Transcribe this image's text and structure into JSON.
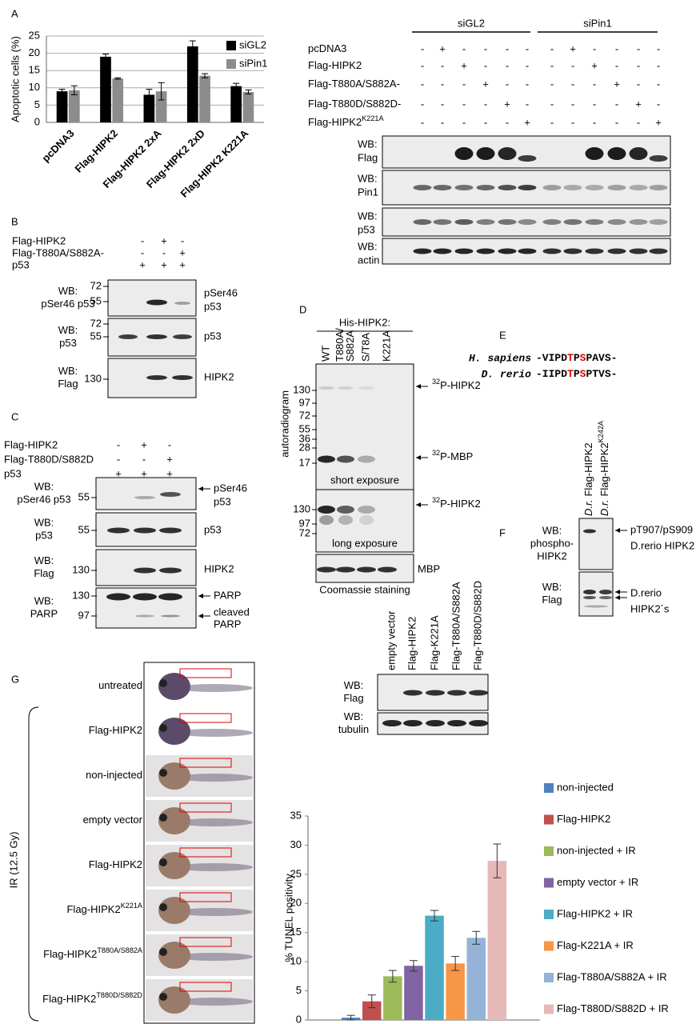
{
  "panel_labels": [
    "A",
    "B",
    "C",
    "D",
    "E",
    "F",
    "G"
  ],
  "chart_data": [
    {
      "type": "bar",
      "y_label": "Apoptotic cells (%)",
      "categories": [
        "pcDNA3",
        "Flag-HIPK2",
        "Flag-HIPK2 2xA",
        "Flag-HIPK2 2xD",
        "Flag-HIPK2 K221A"
      ],
      "series": [
        {
          "name": "siGL2",
          "color": "#000000",
          "values": [
            9,
            19,
            8,
            22,
            10.5
          ],
          "errors": [
            0.6,
            0.8,
            1.6,
            1.6,
            0.8
          ]
        },
        {
          "name": "siPin1",
          "color": "#8c8c8c",
          "values": [
            9.3,
            12.7,
            9,
            13.5,
            8.8
          ],
          "errors": [
            1.3,
            0.2,
            2.5,
            0.6,
            0.6
          ]
        }
      ],
      "ylim": [
        0,
        25
      ],
      "yticks": [
        0,
        5,
        10,
        15,
        20,
        25
      ],
      "grid": true,
      "legend": "top-right"
    },
    {
      "type": "bar",
      "y_label": "% TUNEL positivity",
      "categories": [
        null
      ],
      "series": [
        {
          "name": "non-injected",
          "color": "#4f81bd",
          "values": [
            0.4
          ],
          "errors": [
            0.4
          ]
        },
        {
          "name": "Flag-HIPK2",
          "color": "#c0504d",
          "values": [
            3.2
          ],
          "errors": [
            1.1
          ]
        },
        {
          "name": "non-injected + IR",
          "color": "#9bbb59",
          "values": [
            7.5
          ],
          "errors": [
            1.0
          ]
        },
        {
          "name": "empty vector + IR",
          "color": "#8064a2",
          "values": [
            9.3
          ],
          "errors": [
            0.9
          ]
        },
        {
          "name": "Flag-HIPK2 + IR",
          "color": "#4bacc6",
          "values": [
            17.9
          ],
          "errors": [
            0.9
          ]
        },
        {
          "name": "Flag-K221A + IR",
          "color": "#f79646",
          "values": [
            9.7
          ],
          "errors": [
            1.2
          ]
        },
        {
          "name": "Flag-T880A/S882A + IR",
          "color": "#95b3d7",
          "values": [
            14.1
          ],
          "errors": [
            1.1
          ]
        },
        {
          "name": "Flag-T880D/S882D + IR",
          "color": "#e6b9b8",
          "values": [
            27.3
          ],
          "errors": [
            2.9
          ]
        }
      ],
      "ylim": [
        0,
        35
      ],
      "yticks": [
        0,
        5,
        10,
        15,
        20,
        25,
        30,
        35
      ],
      "grid": false,
      "legend": "right"
    }
  ],
  "panel_a": {
    "groups": [
      "siGL2",
      "siPin1"
    ],
    "rows": [
      {
        "text": "pcDNA3",
        "marks": [
          "-",
          "+",
          "-",
          "-",
          "-",
          "-",
          "-",
          "+",
          "-",
          "-",
          "-",
          "-"
        ]
      },
      {
        "text": "Flag-HIPK2",
        "marks": [
          "-",
          "-",
          "+",
          "-",
          "-",
          "-",
          "-",
          "-",
          "+",
          "-",
          "-",
          "-"
        ]
      },
      {
        "text": "Flag-T880A/S882A-",
        "marks": [
          "-",
          "-",
          "-",
          "+",
          "-",
          "-",
          "-",
          "-",
          "-",
          "+",
          "-",
          "-"
        ]
      },
      {
        "text": "Flag-T880D/S882D-",
        "marks": [
          "-",
          "-",
          "-",
          "-",
          "+",
          "-",
          "-",
          "-",
          "-",
          "-",
          "+",
          "-"
        ]
      },
      {
        "text": "Flag-HIPK2",
        "sup": "K221A",
        "marks": [
          "-",
          "-",
          "-",
          "-",
          "-",
          "+",
          "-",
          "-",
          "-",
          "-",
          "-",
          "+"
        ]
      }
    ],
    "blots": [
      [
        "WB:",
        "Flag"
      ],
      [
        "WB:",
        "Pin1"
      ],
      [
        "WB:",
        "p53"
      ],
      [
        "WB:",
        "actin"
      ]
    ]
  },
  "panel_b": {
    "rows": [
      {
        "label": "Flag-HIPK2",
        "marks": [
          "-",
          "+",
          "-"
        ]
      },
      {
        "label": "Flag-T880A/S882A-",
        "marks": [
          "-",
          "-",
          "+"
        ]
      },
      {
        "label": "p53",
        "marks": [
          "+",
          "+",
          "+"
        ]
      }
    ],
    "blots": [
      {
        "wb": [
          "WB:",
          "pSer46 p53"
        ],
        "markers": [
          72,
          55
        ],
        "target": [
          "pSer46",
          "p53"
        ]
      },
      {
        "wb": [
          "WB:",
          "p53"
        ],
        "markers": [
          72,
          55
        ],
        "target": [
          "p53"
        ]
      },
      {
        "wb": [
          "WB:",
          "Flag"
        ],
        "markers": [
          130
        ],
        "target": [
          "HIPK2"
        ]
      }
    ]
  },
  "panel_c": {
    "rows": [
      {
        "label": "Flag-HIPK2",
        "marks": [
          "-",
          "+",
          "-"
        ]
      },
      {
        "label": "Flag-T880D/S882D",
        "marks": [
          "-",
          "-",
          "+"
        ]
      },
      {
        "label": "p53",
        "marks": [
          "+",
          "+",
          "+"
        ]
      }
    ],
    "blots": [
      {
        "wb": [
          "WB:",
          "pSer46 p53"
        ],
        "markers": [
          55
        ],
        "target": [
          "pSer46",
          "p53"
        ]
      },
      {
        "wb": [
          "WB:",
          "p53"
        ],
        "markers": [
          55
        ],
        "target": [
          "p53"
        ]
      },
      {
        "wb": [
          "WB:",
          "Flag"
        ],
        "markers": [
          130
        ],
        "target": [
          "HIPK2"
        ]
      },
      {
        "wb": [
          "WB:",
          "PARP"
        ],
        "markers": [
          130,
          97
        ],
        "target": [
          "PARP",
          "cleaved",
          "PARP"
        ]
      }
    ]
  },
  "panel_d": {
    "header": "His-HIPK2:",
    "lanes": [
      [
        "WT"
      ],
      [
        "T880A/",
        "S882A"
      ],
      [
        "S/T8A"
      ],
      [
        "K221A"
      ]
    ],
    "y_label": "autoradiogram",
    "markers_top": [
      130,
      97,
      72,
      55,
      36,
      28,
      17
    ],
    "labels_top": [
      {
        "sup": "32",
        "text": "P-HIPK2"
      },
      {
        "sup": "32",
        "text": "P-MBP"
      }
    ],
    "short_exposure": "short exposure",
    "markers_bottom": [
      130,
      97,
      72
    ],
    "label_bottom": {
      "sup": "32",
      "text": "P-HIPK2"
    },
    "long_exposure": "long exposure",
    "mbp": "MBP",
    "coomassie": "Coomassie staining"
  },
  "panel_e": {
    "species": [
      {
        "name": "H. sapiens",
        "seq": [
          "-VIPD",
          "T",
          "P",
          "S",
          "PAVS-"
        ]
      },
      {
        "name": "D. rerio",
        "seq": [
          "-IIPD",
          "T",
          "P",
          "S",
          "PTVS-"
        ]
      }
    ]
  },
  "panel_f": {
    "lanes": [
      {
        "prefix": "D.r.",
        "text": "Flag-HIPK2"
      },
      {
        "prefix": "D.r.",
        "text": "Flag-HIPK2",
        "sup": "K242A"
      }
    ],
    "blots": [
      {
        "wb": [
          "WB:",
          "phospho-",
          "HIPK2"
        ],
        "target": [
          "pT907/pS909",
          "D.rerio HIPK2"
        ]
      },
      {
        "wb": [
          "WB:",
          "Flag"
        ],
        "target": [
          "D.rerio",
          "HIPK2´s"
        ]
      }
    ]
  },
  "panel_g": {
    "embryos": [
      {
        "text": "untreated"
      },
      {
        "text": "Flag-HIPK2"
      },
      {
        "text": "non-injected"
      },
      {
        "text": "empty vector"
      },
      {
        "text": "Flag-HIPK2"
      },
      {
        "text": "Flag-HIPK2",
        "sup": "K221A"
      },
      {
        "text": "Flag-HIPK2",
        "sup": "T880A/S882A"
      },
      {
        "text": "Flag-HIPK2",
        "sup": "T880D/S882D"
      }
    ],
    "ir_label": "IR (12.5 Gy)",
    "blot_lanes": [
      "empty vector",
      "Flag-HIPK2",
      "Flag-K221A",
      "Flag-T880A/S882A",
      "Flag-T880D/S882D"
    ],
    "blots": [
      {
        "wb": [
          "WB:",
          "Flag"
        ]
      },
      {
        "wb": [
          "WB:",
          "tubulin"
        ]
      }
    ]
  }
}
